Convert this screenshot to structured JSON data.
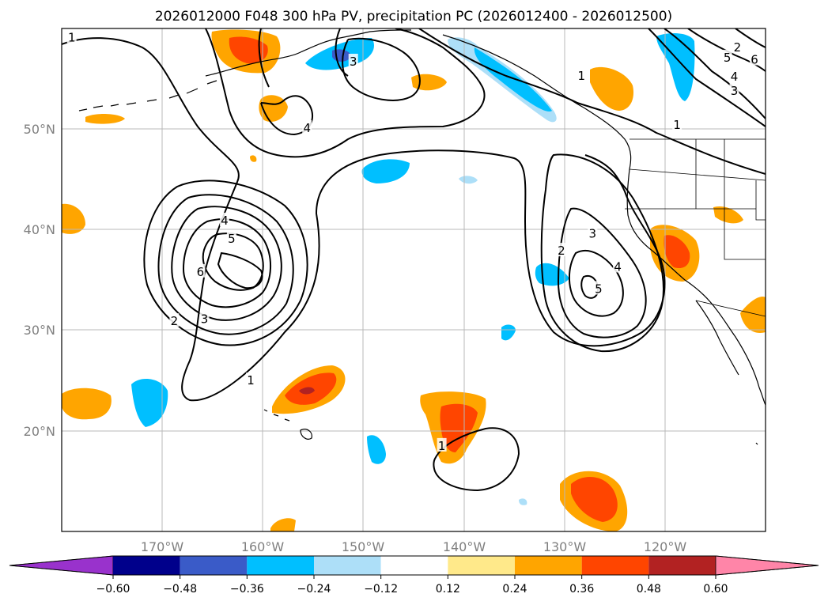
{
  "title": "2026012000 F048 300 hPa PV, precipitation PC (2026012400 - 2026012500)",
  "lat_labels": [
    {
      "lat": 50,
      "text": "50°N"
    },
    {
      "lat": 40,
      "text": "40°N"
    },
    {
      "lat": 30,
      "text": "30°N"
    },
    {
      "lat": 20,
      "text": "20°N"
    }
  ],
  "lon_labels": [
    {
      "lon": -170,
      "text": "170°W"
    },
    {
      "lon": -160,
      "text": "160°W"
    },
    {
      "lon": -150,
      "text": "150°W"
    },
    {
      "lon": -140,
      "text": "140°W"
    },
    {
      "lon": -130,
      "text": "130°W"
    },
    {
      "lon": -120,
      "text": "120°W"
    }
  ],
  "map_extent": {
    "lon_min": -180,
    "lon_max": -110,
    "lat_min": 10,
    "lat_max": 60
  },
  "colorbar": {
    "bounds": [
      -0.6,
      -0.48,
      -0.36,
      -0.24,
      -0.12,
      0.12,
      0.24,
      0.36,
      0.48,
      0.6
    ],
    "tick_labels": [
      "−0.60",
      "−0.48",
      "−0.36",
      "−0.24",
      "−0.12",
      "0.12",
      "0.24",
      "0.36",
      "0.48",
      "0.60"
    ],
    "under_color": "#9932CC",
    "colors": [
      "#9932CC",
      "#00008B",
      "#3A5BC8",
      "#00BFFF",
      "#ADDFF8",
      "#FFFFFF",
      "#FFE98A",
      "#FFA500",
      "#FF4500",
      "#B22222",
      "#FF85A8"
    ],
    "over_color": "#FF85A8"
  },
  "pv_contour_labels": [
    {
      "text": "1",
      "lon": -179,
      "lat": 59.1
    },
    {
      "text": "3",
      "lon": -151,
      "lat": 56.7
    },
    {
      "text": "4",
      "lon": -155.6,
      "lat": 50.1
    },
    {
      "text": "1",
      "lon": -128.3,
      "lat": 55.3
    },
    {
      "text": "2",
      "lon": -112.8,
      "lat": 58.1
    },
    {
      "text": "5",
      "lon": -113.8,
      "lat": 57.1
    },
    {
      "text": "6",
      "lon": -111.1,
      "lat": 56.9
    },
    {
      "text": "4",
      "lon": -113.1,
      "lat": 55.2
    },
    {
      "text": "3",
      "lon": -113.1,
      "lat": 53.8
    },
    {
      "text": "1",
      "lon": -118.8,
      "lat": 50.4
    },
    {
      "text": "4",
      "lon": -163.8,
      "lat": 40.9
    },
    {
      "text": "5",
      "lon": -163.1,
      "lat": 39.1
    },
    {
      "text": "6",
      "lon": -166.2,
      "lat": 35.8
    },
    {
      "text": "2",
      "lon": -168.8,
      "lat": 30.9
    },
    {
      "text": "3",
      "lon": -165.8,
      "lat": 31.1
    },
    {
      "text": "1",
      "lon": -161.2,
      "lat": 25.0
    },
    {
      "text": "2",
      "lon": -130.3,
      "lat": 37.9
    },
    {
      "text": "3",
      "lon": -127.2,
      "lat": 39.6
    },
    {
      "text": "4",
      "lon": -124.7,
      "lat": 36.3
    },
    {
      "text": "5",
      "lon": -126.6,
      "lat": 34.1
    },
    {
      "text": "1",
      "lon": -142.2,
      "lat": 18.5
    }
  ]
}
